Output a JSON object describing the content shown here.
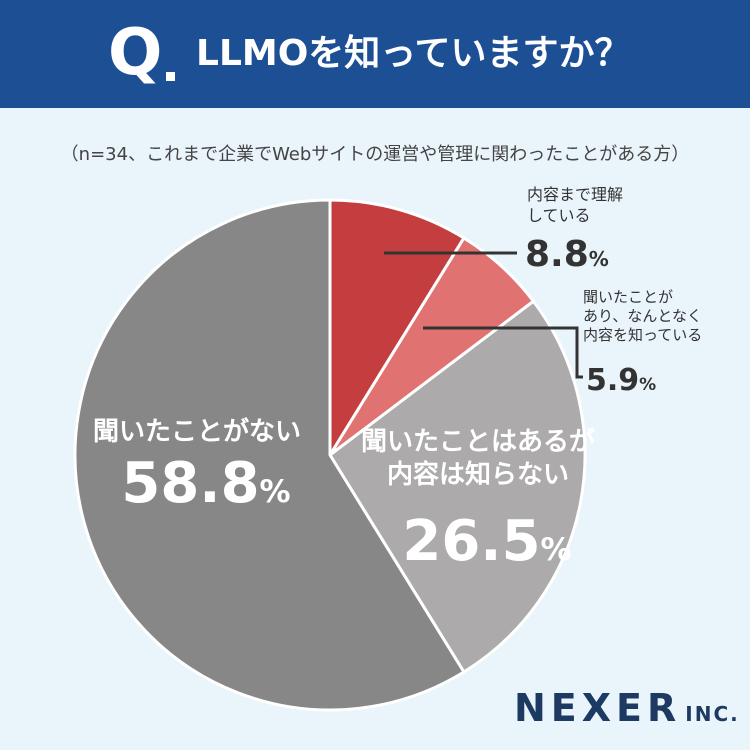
{
  "header": {
    "q_label": "Q",
    "title": "LLMOを知っていますか？"
  },
  "note": "（n=34、これまで企業でWebサイトの運営や管理に関わったことがある方）",
  "chart_data": {
    "type": "pie",
    "title": "LLMOを知っていますか？",
    "n": 34,
    "slices": [
      {
        "label_lines": [
          "内容まで理解",
          "している"
        ],
        "value": 8.8,
        "unit": "%",
        "color": "#c43e3f"
      },
      {
        "label_lines": [
          "聞いたことが",
          "あり、なんとなく",
          "内容を知っている"
        ],
        "value": 5.9,
        "unit": "%",
        "color": "#e07272"
      },
      {
        "label_lines": [
          "聞いたことはあるが",
          "内容は知らない"
        ],
        "value": 26.5,
        "unit": "%",
        "color": "#acaaab"
      },
      {
        "label_lines": [
          "聞いたことがない"
        ],
        "value": 58.8,
        "unit": "%",
        "color": "#878787"
      }
    ]
  },
  "brand": {
    "name": "NEXER",
    "suffix": "INC."
  }
}
